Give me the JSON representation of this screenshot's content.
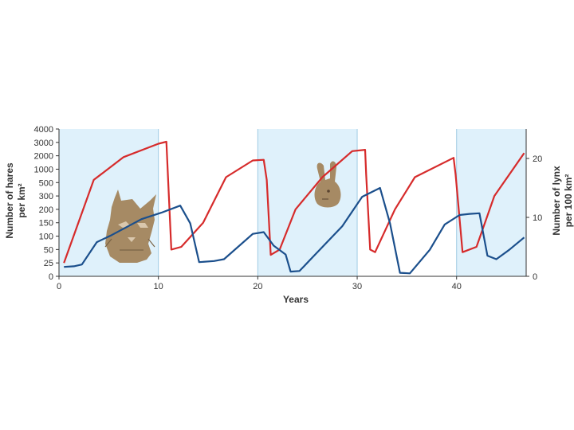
{
  "chart_data": {
    "type": "line",
    "xlabel": "Years",
    "ylabel_left": [
      "Number of hares",
      "per km²"
    ],
    "ylabel_right": [
      "Number of lynx",
      "per 100 km²"
    ],
    "xlim": [
      0,
      47
    ],
    "x_ticks": [
      0,
      10,
      20,
      30,
      40
    ],
    "left_ticks": [
      0,
      25,
      50,
      100,
      150,
      200,
      300,
      500,
      1000,
      2000,
      3000,
      4000
    ],
    "right_ticks": [
      0,
      10,
      20
    ],
    "right_ylim": [
      0,
      25
    ],
    "grid": false,
    "shaded_bands": [
      [
        0,
        10
      ],
      [
        20,
        30
      ],
      [
        40,
        47
      ]
    ],
    "colors": {
      "hares": "#d62b2b",
      "lynx": "#1b4f8c",
      "band": "#dff1fb",
      "band_edge": "#9fcbe3",
      "silhouette": "#a68a64"
    },
    "series": [
      {
        "axis": "left",
        "color": "#d62b2b",
        "x": [
          0.5,
          3.5,
          6.5,
          10,
          10.8,
          11.3,
          12.3,
          14.5,
          16.8,
          19.5,
          20.6,
          20.9,
          21.3,
          22.2,
          23.8,
          26.5,
          29.5,
          30.8,
          30.9,
          31.3,
          31.8,
          33.8,
          35.8,
          39.7,
          39.9,
          40.6,
          42,
          43.8,
          46.8
        ],
        "y": [
          25,
          600,
          1900,
          2900,
          3050,
          50,
          60,
          150,
          700,
          1650,
          1700,
          600,
          40,
          50,
          200,
          700,
          2350,
          2450,
          800,
          50,
          45,
          200,
          700,
          1850,
          800,
          45,
          60,
          300,
          2200
        ]
      },
      {
        "axis": "right",
        "color": "#1b4f8c",
        "x": [
          0.5,
          1.5,
          2.3,
          3.8,
          5.3,
          8.3,
          10.3,
          12.2,
          13.2,
          14.1,
          15.6,
          16.6,
          19.5,
          20.6,
          21.6,
          22.8,
          23.3,
          24.2,
          25.5,
          28.5,
          30.5,
          32.3,
          33.3,
          34.3,
          35.3,
          37.3,
          38.8,
          40.3,
          41.3,
          42.3,
          43.1,
          44,
          45.3,
          46.8
        ],
        "y": [
          1.6,
          1.7,
          2,
          5.8,
          7,
          9.7,
          10.8,
          12,
          9,
          2.4,
          2.6,
          2.9,
          7.2,
          7.5,
          5.2,
          3.7,
          0.8,
          0.9,
          3.2,
          8.5,
          13.5,
          15,
          9,
          0.6,
          0.5,
          4.5,
          8.8,
          10.4,
          10.6,
          10.7,
          3.5,
          2.9,
          4.5,
          6.6
        ]
      }
    ],
    "annotations": [
      {
        "kind": "lynx-silhouette"
      },
      {
        "kind": "hare-silhouette"
      }
    ]
  }
}
